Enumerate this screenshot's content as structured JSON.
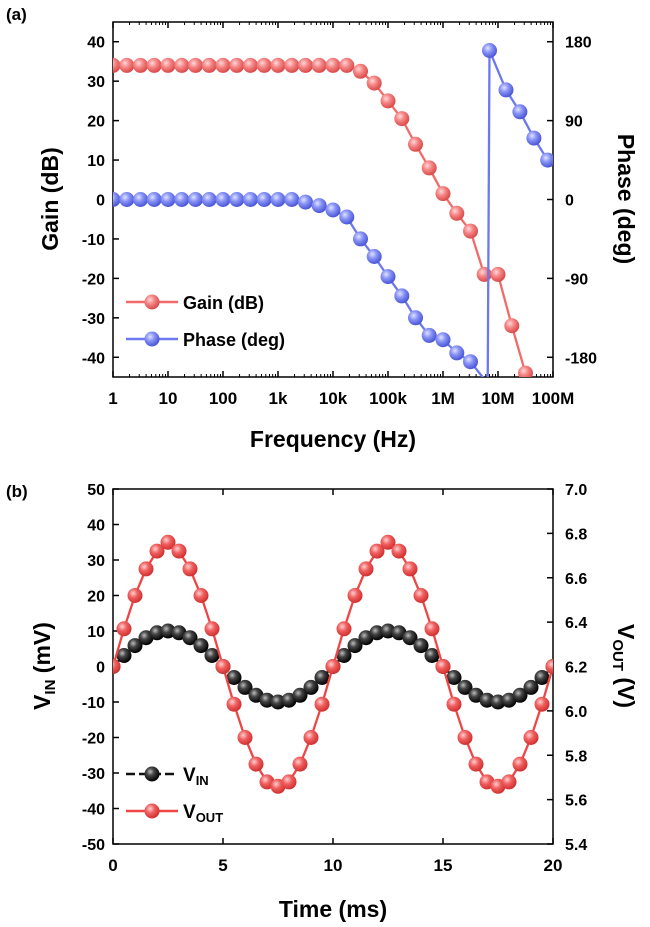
{
  "colors": {
    "gain": "#f26b6b",
    "phase": "#6b78f0",
    "vin": "#111111",
    "vout": "#f04545"
  },
  "chart_data": [
    {
      "panel_label": "(a)",
      "type": "line",
      "x_scale": "log",
      "xlabel": "Frequency (Hz)",
      "ylabel_left": "Gain (dB)",
      "ylabel_right": "Phase (deg)",
      "xlim": [
        1,
        100000000
      ],
      "ylim_left": [
        -45,
        45
      ],
      "ylim_right": [
        -202.5,
        202.5
      ],
      "x_ticks": [
        1,
        10,
        100,
        1000,
        10000,
        100000,
        1000000,
        10000000,
        100000000
      ],
      "x_tick_labels": [
        "1",
        "10",
        "100",
        "1k",
        "10k",
        "100k",
        "1M",
        "10M",
        "100M"
      ],
      "y_left_ticks": [
        "40",
        "30",
        "20",
        "10",
        "0",
        "-10",
        "-20",
        "-30",
        "-40"
      ],
      "y_right_ticks": [
        "180",
        "90",
        "0",
        "-90",
        "-180"
      ],
      "legend_position": "bottom-left",
      "series": [
        {
          "name": "Gain (dB)",
          "axis": "left",
          "x": [
            1,
            1.78,
            3.16,
            5.62,
            10,
            17.8,
            31.6,
            56.2,
            100,
            178,
            316,
            562,
            1000,
            1780,
            3160,
            5620,
            10000,
            17800,
            31600,
            56200,
            100000,
            178000,
            316000,
            562000,
            1000000,
            1780000,
            3160000,
            5620000,
            10000000,
            17800000,
            31600000
          ],
          "values": [
            34,
            34,
            34,
            34,
            34,
            34,
            34,
            34,
            34,
            34,
            34,
            34,
            34,
            34,
            34,
            34,
            34,
            34,
            32.5,
            29.5,
            25,
            20.5,
            14,
            8,
            1.5,
            -3.5,
            -8,
            -19,
            -19,
            -32,
            -44
          ]
        },
        {
          "name": "Phase (deg)",
          "axis": "right",
          "x": [
            1,
            1.78,
            3.16,
            5.62,
            10,
            17.8,
            31.6,
            56.2,
            100,
            178,
            316,
            562,
            1000,
            1780,
            3160,
            5620,
            10000,
            17800,
            31600,
            56200,
            100000,
            178000,
            316000,
            562000,
            1000000,
            1780000,
            3160000,
            6500000,
            7000000,
            14000000,
            25000000,
            45000000,
            80000000
          ],
          "values": [
            0,
            0,
            0,
            0,
            0,
            0,
            0,
            0,
            0,
            0,
            0,
            0,
            0,
            0,
            -3,
            -7,
            -12,
            -20,
            -45,
            -65,
            -88,
            -110,
            -135,
            -155,
            -160,
            -175,
            -185,
            -210,
            170,
            125,
            100,
            70,
            45
          ]
        }
      ]
    },
    {
      "panel_label": "(b)",
      "type": "line",
      "xlabel": "Time (ms)",
      "ylabel_left": "VIN (mV)",
      "ylabel_right": "VOUT (V)",
      "xlim": [
        0,
        20
      ],
      "ylim_left": [
        -50,
        50
      ],
      "ylim_right": [
        5.4,
        7.0
      ],
      "x_ticks": [
        "0",
        "5",
        "10",
        "15",
        "20"
      ],
      "y_left_ticks": [
        "50",
        "40",
        "30",
        "20",
        "10",
        "0",
        "-10",
        "-20",
        "-30",
        "-40",
        "-50"
      ],
      "y_right_ticks": [
        "7.0",
        "6.8",
        "6.6",
        "6.4",
        "6.2",
        "6.0",
        "5.8",
        "5.6",
        "5.4"
      ],
      "legend_position": "bottom-left",
      "series": [
        {
          "name": "VIN",
          "axis": "left",
          "x": [
            0,
            0.5,
            1,
            1.5,
            2,
            2.5,
            3,
            3.5,
            4,
            4.5,
            5,
            5.5,
            6,
            6.5,
            7,
            7.5,
            8,
            8.5,
            9,
            9.5,
            10,
            10.5,
            11,
            11.5,
            12,
            12.5,
            13,
            13.5,
            14,
            14.5,
            15,
            15.5,
            16,
            16.5,
            17,
            17.5,
            18,
            18.5,
            19,
            19.5,
            20
          ],
          "values": [
            0,
            3.1,
            5.9,
            8.1,
            9.5,
            10,
            9.5,
            8.1,
            5.9,
            3.1,
            0,
            -3.1,
            -5.9,
            -8.1,
            -9.5,
            -10,
            -9.5,
            -8.1,
            -5.9,
            -3.1,
            0,
            3.1,
            5.9,
            8.1,
            9.5,
            10,
            9.5,
            8.1,
            5.9,
            3.1,
            0,
            -3.1,
            -5.9,
            -8.1,
            -9.5,
            -10,
            -9.5,
            -8.1,
            -5.9,
            -3.1,
            0
          ]
        },
        {
          "name": "VOUT",
          "axis": "right",
          "x": [
            0,
            0.5,
            1,
            1.5,
            2,
            2.5,
            3,
            3.5,
            4,
            4.5,
            5,
            5.5,
            6,
            6.5,
            7,
            7.5,
            8,
            8.5,
            9,
            9.5,
            10,
            10.5,
            11,
            11.5,
            12,
            12.5,
            13,
            13.5,
            14,
            14.5,
            15,
            15.5,
            16,
            16.5,
            17,
            17.5,
            18,
            18.5,
            19,
            19.5,
            20
          ],
          "values": [
            6.2,
            6.37,
            6.52,
            6.64,
            6.72,
            6.76,
            6.72,
            6.64,
            6.52,
            6.37,
            6.2,
            6.03,
            5.88,
            5.76,
            5.68,
            5.66,
            5.68,
            5.76,
            5.88,
            6.03,
            6.2,
            6.37,
            6.52,
            6.64,
            6.72,
            6.76,
            6.72,
            6.64,
            6.52,
            6.37,
            6.2,
            6.03,
            5.88,
            5.76,
            5.68,
            5.66,
            5.68,
            5.76,
            5.88,
            6.03,
            6.2
          ]
        }
      ]
    }
  ]
}
